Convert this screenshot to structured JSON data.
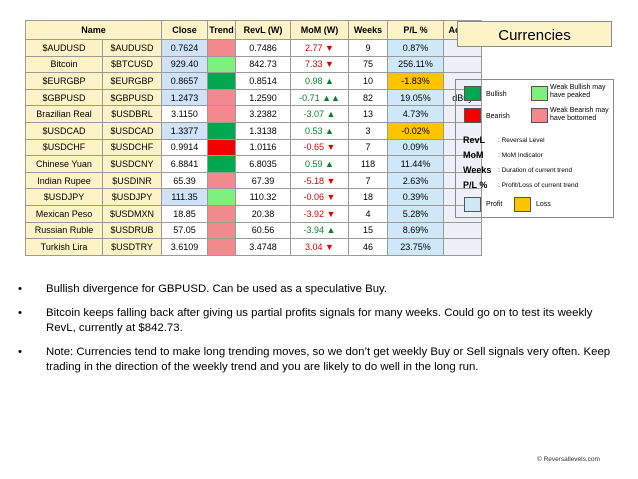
{
  "table": {
    "headers": [
      "Name",
      "Close",
      "Trend",
      "RevL (W)",
      "MoM (W)",
      "Weeks",
      "P/L %",
      "Action"
    ],
    "rows": [
      {
        "name": "$AUDUSD",
        "ticker": "$AUDUSD",
        "close": "0.7624",
        "close_bg": "blue",
        "trend": "weakbear",
        "revl": "0.7486",
        "mom": "2.77 ▼",
        "mom_dir": "down",
        "weeks": "9",
        "pl": "0.87%",
        "pl_bg": "profit",
        "action": ""
      },
      {
        "name": "Bitcoin",
        "ticker": "$BTCUSD",
        "close": "929.40",
        "close_bg": "blue",
        "trend": "weakbull",
        "revl": "842.73",
        "mom": "7.33 ▼",
        "mom_dir": "down",
        "weeks": "75",
        "pl": "256.11%",
        "pl_bg": "profit",
        "action": ""
      },
      {
        "name": "$EURGBP",
        "ticker": "$EURGBP",
        "close": "0.8657",
        "close_bg": "blue",
        "trend": "bull",
        "revl": "0.8514",
        "mom": "0.98 ▲",
        "mom_dir": "up",
        "weeks": "10",
        "pl": "-1.83%",
        "pl_bg": "loss",
        "action": ""
      },
      {
        "name": "$GBPUSD",
        "ticker": "$GBPUSD",
        "close": "1.2473",
        "close_bg": "blue",
        "trend": "weakbear",
        "revl": "1.2590",
        "mom": "-0.71 ▲▲",
        "mom_dir": "up",
        "weeks": "82",
        "pl": "19.05%",
        "pl_bg": "profit",
        "action": "dBuy"
      },
      {
        "name": "Brazilian Real",
        "ticker": "$USDBRL",
        "close": "3.1150",
        "close_bg": "white",
        "trend": "weakbear",
        "revl": "3.2382",
        "mom": "-3.07 ▲",
        "mom_dir": "up",
        "weeks": "13",
        "pl": "4.73%",
        "pl_bg": "profit",
        "action": ""
      },
      {
        "name": "$USDCAD",
        "ticker": "$USDCAD",
        "close": "1.3377",
        "close_bg": "blue",
        "trend": "bull",
        "revl": "1.3138",
        "mom": "0.53 ▲",
        "mom_dir": "up",
        "weeks": "3",
        "pl": "-0.02%",
        "pl_bg": "loss",
        "action": ""
      },
      {
        "name": "$USDCHF",
        "ticker": "$USDCHF",
        "close": "0.9914",
        "close_bg": "white",
        "trend": "bear",
        "revl": "1.0116",
        "mom": "-0.65 ▼",
        "mom_dir": "down",
        "weeks": "7",
        "pl": "0.09%",
        "pl_bg": "profit",
        "action": ""
      },
      {
        "name": "Chinese Yuan",
        "ticker": "$USDCNY",
        "close": "6.8841",
        "close_bg": "white",
        "trend": "bull",
        "revl": "6.8035",
        "mom": "0.59 ▲",
        "mom_dir": "up",
        "weeks": "118",
        "pl": "11.44%",
        "pl_bg": "profit",
        "action": ""
      },
      {
        "name": "Indian Rupee",
        "ticker": "$USDINR",
        "close": "65.39",
        "close_bg": "white",
        "trend": "weakbear",
        "revl": "67.39",
        "mom": "-5.18 ▼",
        "mom_dir": "down",
        "weeks": "7",
        "pl": "2.63%",
        "pl_bg": "profit",
        "action": ""
      },
      {
        "name": "$USDJPY",
        "ticker": "$USDJPY",
        "close": "111.35",
        "close_bg": "blue",
        "trend": "weakbull",
        "revl": "110.32",
        "mom": "-0.06 ▼",
        "mom_dir": "down",
        "weeks": "18",
        "pl": "0.39%",
        "pl_bg": "profit",
        "action": ""
      },
      {
        "name": "Mexican Peso",
        "ticker": "$USDMXN",
        "close": "18.85",
        "close_bg": "white",
        "trend": "weakbear",
        "revl": "20.38",
        "mom": "-3.92 ▼",
        "mom_dir": "down",
        "weeks": "4",
        "pl": "5.28%",
        "pl_bg": "profit",
        "action": ""
      },
      {
        "name": "Russian Ruble",
        "ticker": "$USDRUB",
        "close": "57.05",
        "close_bg": "white",
        "trend": "weakbear",
        "revl": "60.56",
        "mom": "-3.94 ▲",
        "mom_dir": "up",
        "weeks": "15",
        "pl": "8.69%",
        "pl_bg": "profit",
        "action": ""
      },
      {
        "name": "Turkish Lira",
        "ticker": "$USDTRY",
        "close": "3.6109",
        "close_bg": "white",
        "trend": "weakbear",
        "revl": "3.4748",
        "mom": "3.04 ▼",
        "mom_dir": "down",
        "weeks": "46",
        "pl": "23.75%",
        "pl_bg": "profit",
        "action": ""
      }
    ]
  },
  "title": "Currencies",
  "legend": {
    "bullish": "Bullish",
    "weak_bullish": "Weak Bullish may have peaked",
    "bearish": "Bearish",
    "weak_bearish": "Weak Bearish may have bottomed",
    "revl_key": "RevL",
    "revl_desc": ": Reversal Level",
    "mom_key": "MoM",
    "mom_desc": ": MoM Indicator",
    "weeks_key": "Weeks",
    "weeks_desc": ": Duration of current trend",
    "pl_key": "P/L %",
    "pl_desc": ": Profit/Loss of current trend",
    "profit": "Profit",
    "loss": "Loss"
  },
  "colors": {
    "bull": "#00a84f",
    "weakbull": "#7ef07e",
    "bear": "#f40000",
    "weakbear": "#f2898d",
    "profit": "#cfe8f7",
    "loss": "#ffc400",
    "header_bg": "#fdf3c6"
  },
  "notes": [
    "Bullish divergence for GBPUSD. Can be used as a speculative Buy.",
    "Bitcoin keeps falling back after giving us partial profits signals for many weeks. Could go on to test its weekly RevL, currently at $842.73.",
    "Note: Currencies tend to make long trending moves, so we don’t get weekly Buy or Sell signals very often. Keep trading in the direction of the weekly trend and you are likely to do well in the long run."
  ],
  "bullet_char": "•",
  "footer": "© Reversallevels.com"
}
